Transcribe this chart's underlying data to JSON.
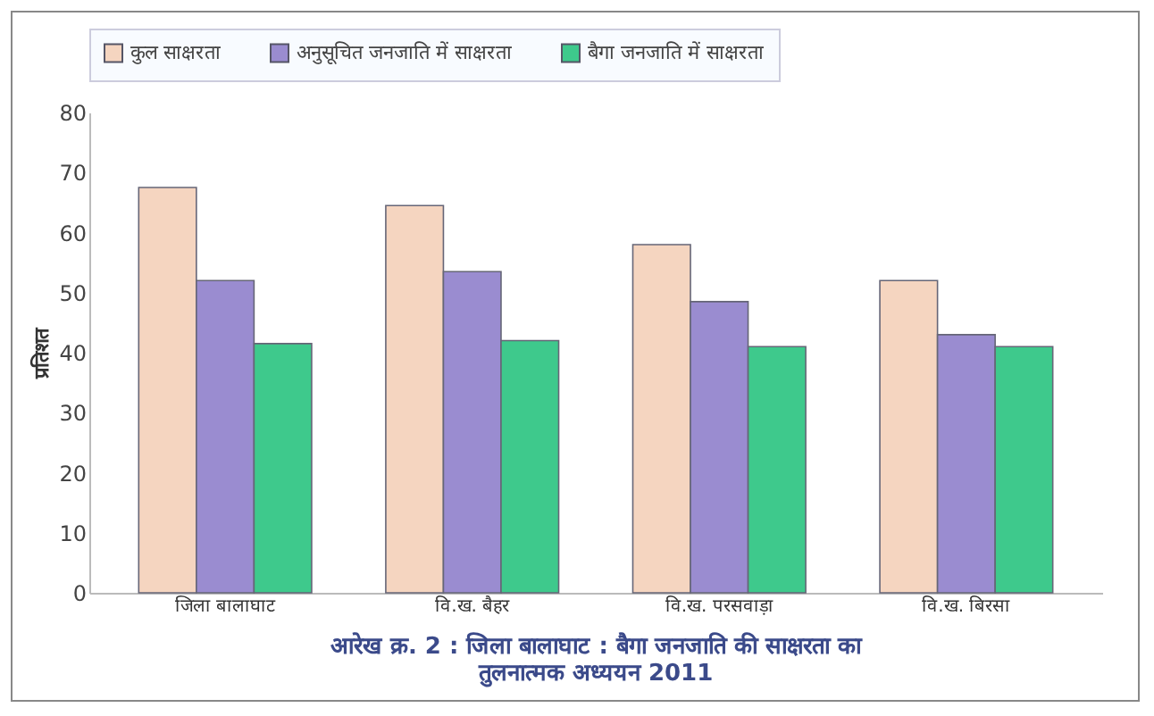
{
  "chart_data": {
    "type": "bar",
    "title": [
      "आरेख क्र. 2 : जिला बालाघाट : बैगा जनजाति की साक्षरता का",
      "तुलनात्मक अध्ययन 2011"
    ],
    "ylabel": "प्रतिशत",
    "categories": [
      "जिला बालाघाट",
      "वि.ख. बैहर",
      "वि.ख. परसवाड़ा",
      "वि.ख. बिरसा"
    ],
    "series": [
      {
        "name": "कुल साक्षरता",
        "color": "#f5d5c0",
        "values": [
          67.5,
          64.5,
          58,
          52
        ]
      },
      {
        "name": "अनुसूचित जनजाति में साक्षरता",
        "color": "#9a8cd0",
        "values": [
          52,
          53.5,
          48.5,
          43
        ]
      },
      {
        "name": "बैगा जनजाति में साक्षरता",
        "color": "#3ec98c",
        "values": [
          41.5,
          42,
          41,
          41
        ]
      }
    ],
    "ylim": [
      0,
      80
    ],
    "yticks": [
      0,
      10,
      20,
      30,
      40,
      50,
      60,
      70,
      80
    ],
    "grid": false,
    "legend": "top"
  }
}
